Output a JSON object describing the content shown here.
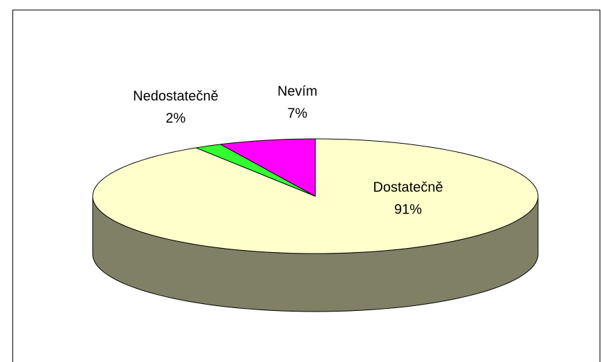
{
  "chart_data": {
    "type": "pie",
    "categories": [
      "Dostatečně",
      "Nedostatečně",
      "Nevím"
    ],
    "values": [
      91,
      2,
      7
    ],
    "value_labels": [
      "91%",
      "2%",
      "7%"
    ],
    "colors": [
      "#ffffcc",
      "#33ff33",
      "#ff00ff"
    ]
  }
}
